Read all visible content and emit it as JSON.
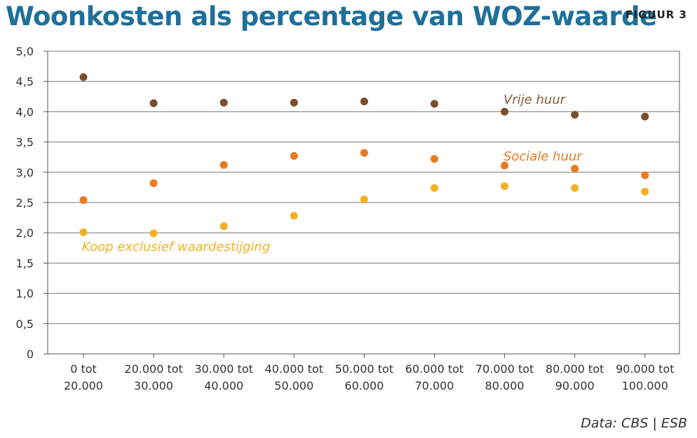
{
  "header": {
    "title": "Woonkosten als percentage van WOZ-waarde",
    "figure_label": "FIGUUR 3"
  },
  "footer": {
    "source": "Data: CBS | ESB"
  },
  "chart_data": {
    "type": "scatter",
    "title": "Woonkosten als percentage van WOZ-waarde",
    "xlabel": "",
    "ylabel": "",
    "ylim": [
      0,
      5
    ],
    "yticks": [
      "0",
      "0,5",
      "1,0",
      "1,5",
      "2,0",
      "2,5",
      "3,0",
      "3,5",
      "4,0",
      "4,5",
      "5,0"
    ],
    "grid": true,
    "categories": [
      [
        "0 tot",
        "20.000"
      ],
      [
        "20.000 tot",
        "30.000"
      ],
      [
        "30.000 tot",
        "40.000"
      ],
      [
        "40.000 tot",
        "50.000"
      ],
      [
        "50.000 tot",
        "60.000"
      ],
      [
        "60.000 tot",
        "70.000"
      ],
      [
        "70.000 tot",
        "80.000"
      ],
      [
        "80.000 tot",
        "90.000"
      ],
      [
        "90.000 tot",
        "100.000"
      ]
    ],
    "series": [
      {
        "name": "Vrije huur",
        "color": "#7a4e2d",
        "label_color": "#8a5a3a",
        "values": [
          4.57,
          4.14,
          4.15,
          4.15,
          4.17,
          4.13,
          4.0,
          3.95,
          3.92
        ]
      },
      {
        "name": "Sociale huur",
        "color": "#ea7a20",
        "label_color": "#ea7a20",
        "values": [
          2.54,
          2.82,
          3.12,
          3.27,
          3.32,
          3.22,
          3.11,
          3.06,
          2.95
        ]
      },
      {
        "name": "Koop exclusief waardestijging",
        "color": "#f5b023",
        "label_color": "#f5b023",
        "values": [
          2.01,
          1.99,
          2.11,
          2.28,
          2.55,
          2.74,
          2.77,
          2.74,
          2.68
        ]
      }
    ]
  }
}
